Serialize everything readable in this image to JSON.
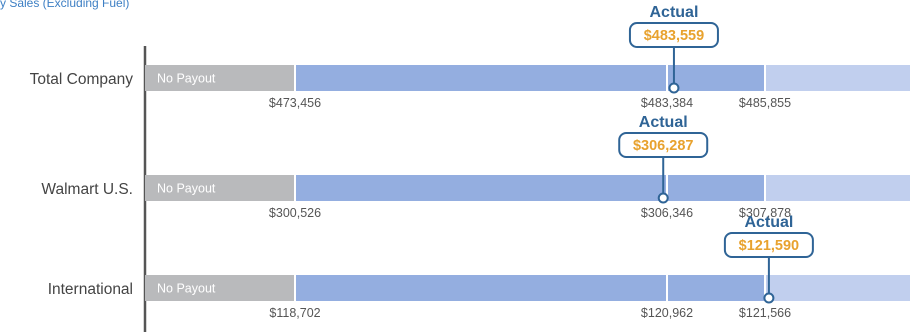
{
  "caption": "y Sales (Excluding Fuel)",
  "colors": {
    "no_payout": "#b9babc",
    "target_band": "#94aee0",
    "upper_band": "#c1cfee",
    "actual_text": "#2f6496",
    "actual_value": "#e8a22e",
    "tick_text": "#555555",
    "label_text": "#444444",
    "axis": "#555555"
  },
  "chart_data": {
    "type": "bar",
    "subtype": "performance-range",
    "rows": [
      {
        "label": "Total Company",
        "segment_label": "No Payout",
        "thresholds": [
          473456,
          483384,
          485855
        ],
        "threshold_labels": [
          "$473,456",
          "$483,384",
          "$485,855"
        ],
        "actual": 483559,
        "actual_title": "Actual",
        "actual_label": "$483,559"
      },
      {
        "label": "Walmart U.S.",
        "segment_label": "No Payout",
        "thresholds": [
          300526,
          306346,
          307878
        ],
        "threshold_labels": [
          "$300,526",
          "$306,346",
          "$307,878"
        ],
        "actual": 306287,
        "actual_title": "Actual",
        "actual_label": "$306,287"
      },
      {
        "label": "International",
        "segment_label": "No Payout",
        "thresholds": [
          118702,
          120962,
          121566
        ],
        "threshold_labels": [
          "$118,702",
          "$120,962",
          "$121,566"
        ],
        "actual": 121590,
        "actual_title": "Actual",
        "actual_label": "$121,590"
      }
    ]
  }
}
